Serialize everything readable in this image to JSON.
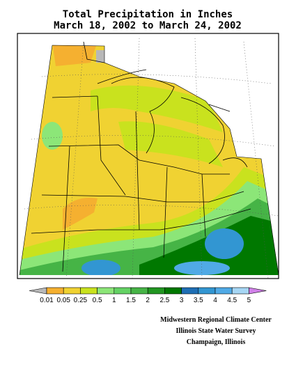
{
  "header": {
    "title_lines": [
      "Total Precipitation in Inches",
      "March 18, 2002 to March 24, 2002"
    ]
  },
  "legend": {
    "labels": [
      0.01,
      0.05,
      0.25,
      0.5,
      1,
      1.5,
      2,
      2.5,
      3,
      3.5,
      4,
      4.5,
      5
    ],
    "low_color": "#b8b8b8",
    "colors": [
      "#f5b030",
      "#f0d232",
      "#c9e21e",
      "#8ce678",
      "#64d264",
      "#46b446",
      "#219621",
      "#007800",
      "#1e6eb4",
      "#3296d2",
      "#50aae6",
      "#a6d6f4"
    ],
    "high_color": "#d080e8"
  },
  "credits": [
    "Midwestern Regional Climate Center",
    "Illinois State Water Survey",
    "Champaign, Illinois"
  ]
}
